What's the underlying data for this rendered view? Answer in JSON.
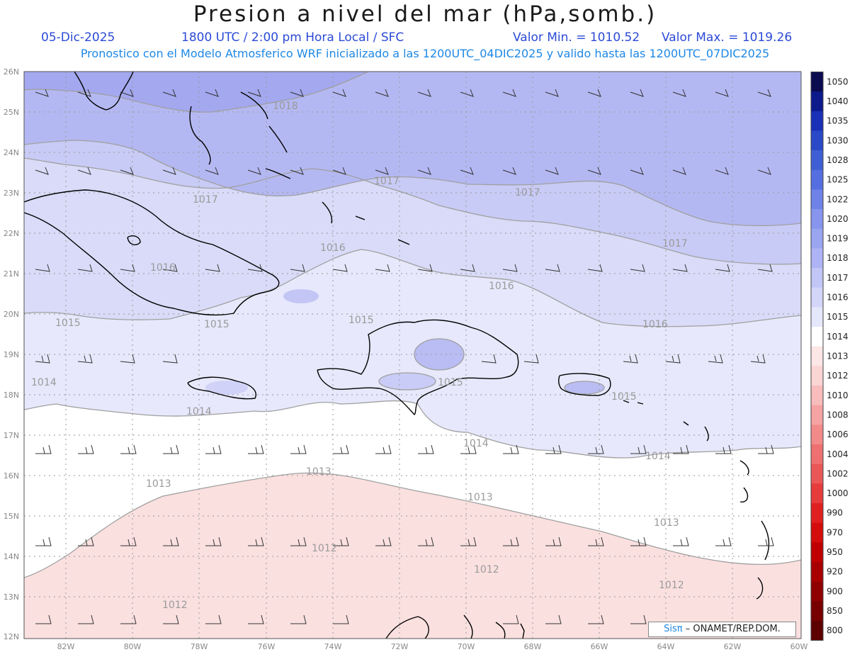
{
  "header": {
    "title": "Presion a nivel del mar (hPa,somb.)",
    "date": "05-Dic-2025",
    "time": "1800 UTC / 2:00 pm Hora Local / SFC",
    "valmin": "Valor Min. = 1010.52",
    "valmax": "Valor Max. = 1019.26",
    "forecast": "Pronostico con el Modelo Atmosferico WRF inicializado a las 1200UTC_04DIC2025 y valido hasta las  1200UTC_07DIC2025"
  },
  "map": {
    "lat_labels": [
      "26N",
      "25N",
      "24N",
      "23N",
      "22N",
      "21N",
      "20N",
      "19N",
      "18N",
      "17N",
      "16N",
      "15N",
      "14N",
      "13N",
      "12N"
    ],
    "lon_labels": [
      "82W",
      "80W",
      "78W",
      "76W",
      "74W",
      "72W",
      "70W",
      "68W",
      "66W",
      "64W",
      "62W",
      "60W"
    ],
    "contour_labels": [
      "1018",
      "1017",
      "1017",
      "1017",
      "1017",
      "1016",
      "1016",
      "1016",
      "1016",
      "1015",
      "1015",
      "1015",
      "1015",
      "1015",
      "1014",
      "1014",
      "1014",
      "1014",
      "1013",
      "1013",
      "1013",
      "1013",
      "1012",
      "1012",
      "1012",
      "1012"
    ],
    "min_pressure": 1010.52,
    "max_pressure": 1019.26
  },
  "colorbar": {
    "levels": [
      "1050",
      "1040",
      "1035",
      "1030",
      "1028",
      "1025",
      "1022",
      "1020",
      "1019",
      "1018",
      "1017",
      "1016",
      "1015",
      "1014",
      "1013",
      "1012",
      "1010",
      "1008",
      "1006",
      "1004",
      "1002",
      "1000",
      "990",
      "970",
      "950",
      "920",
      "900",
      "850",
      "800"
    ],
    "colors": [
      "#0b0b50",
      "#0d1a8c",
      "#1a30b8",
      "#2a49c8",
      "#3e5fd3",
      "#566fe0",
      "#6e82e8",
      "#8795ee",
      "#9aa5f0",
      "#adb3f4",
      "#c1c6f6",
      "#d3d6f9",
      "#e5e7fb",
      "#ffffff",
      "#fce6e6",
      "#fbd4d4",
      "#f8bcbc",
      "#f5a3a3",
      "#f28a8a",
      "#ee7070",
      "#ea5757",
      "#e63c3c",
      "#e02020",
      "#d40c0c",
      "#c00000",
      "#a80000",
      "#900000",
      "#780000",
      "#5c0000"
    ]
  },
  "credit": {
    "sis": "Sisπ",
    "rest": "– ONAMET/REP.DOM."
  }
}
